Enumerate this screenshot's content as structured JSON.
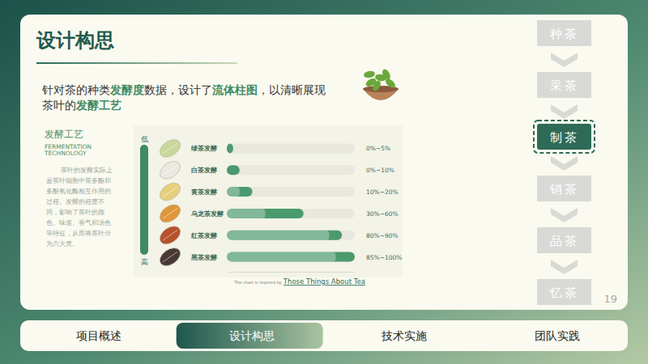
{
  "page": {
    "title": "设计构思",
    "intro": [
      [
        {
          "text": "针对茶的种类",
          "em": false
        },
        {
          "text": "发酵度",
          "em": true
        },
        {
          "text": "数据，设计了",
          "em": false
        },
        {
          "text": "流体柱图",
          "em": true
        },
        {
          "text": "，以清晰展现",
          "em": false
        }
      ],
      [
        {
          "text": "茶叶的",
          "em": false
        },
        {
          "text": "发酵工艺",
          "em": true
        }
      ]
    ],
    "section_title": "发酵工艺",
    "section_subtitle": [
      "FERMENTATION",
      "TECHNOLOGY"
    ],
    "body": [
      "茶叶的发酵实际上",
      "是茶叶细胞中茶多酚和",
      "多酚氧化酶相互作用的",
      "过程。发酵的程度不",
      "同，影响了茶叶的颜",
      "色、味道、香气和汤色",
      "等特征，从而将茶叶分",
      "为六大类。"
    ],
    "steps": [
      "种茶",
      "采茶",
      "制茶",
      "销茶",
      "品茶",
      "忆茶"
    ],
    "active_step": 2,
    "page_number": 19,
    "nav": [
      "项目概述",
      "设计构思",
      "技术实施",
      "团队实践"
    ],
    "active_nav": 1
  },
  "chart_data": {
    "type": "bar",
    "orientation": "horizontal",
    "categories": [
      "绿茶发酵",
      "白茶发酵",
      "黄茶发酵",
      "乌龙茶发酵",
      "红茶发酵",
      "黑茶发酵"
    ],
    "low": [
      0,
      0,
      10,
      30,
      80,
      85
    ],
    "values": [
      5,
      10,
      20,
      60,
      90,
      100
    ],
    "value_labels": [
      "0%~5%",
      "0%~10%",
      "10%~20%",
      "30%~60%",
      "80%~90%",
      "85%~100%"
    ],
    "color": "#4b9a6e",
    "xlim": [
      0,
      100
    ],
    "tick_labels": false,
    "data_labels": true,
    "axis_low_label": "低",
    "axis_high_label": "高",
    "credit_prefix": "The chart is inspired by",
    "credit_source": "Those Things About Tea"
  }
}
